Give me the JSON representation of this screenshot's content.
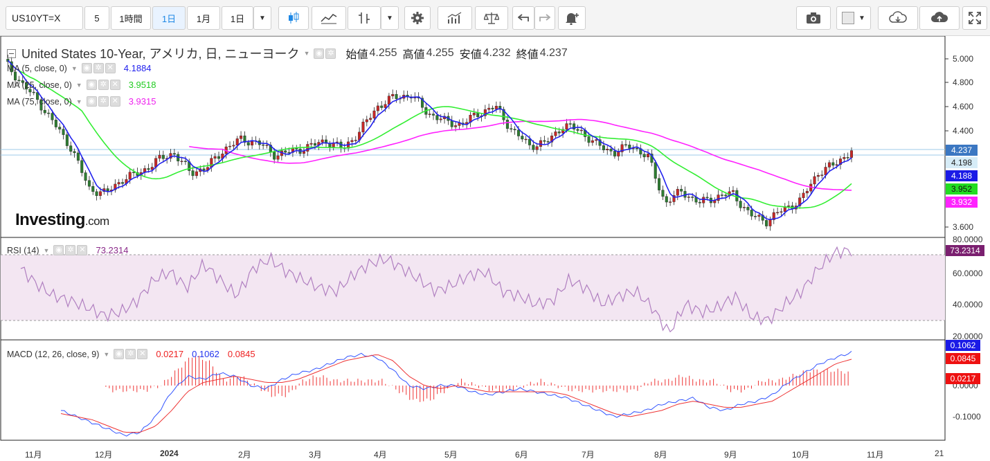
{
  "toolbar": {
    "symbol": "US10YT=X",
    "interval_5": "5",
    "interval_1h": "1時間",
    "interval_1d": "1日",
    "range_1m": "1月",
    "range_1d": "1日"
  },
  "main": {
    "title": "United States 10-Year, アメリカ, 日, ニューヨーク",
    "open_label": "始値",
    "open": "4.255",
    "high_label": "高値",
    "high": "4.255",
    "low_label": "安値",
    "low": "4.232",
    "close_label": "終値",
    "close": "4.237",
    "ma1_label": "MA (5, close, 0)",
    "ma1_value": "4.1884",
    "ma2_label": "MA (25, close, 0)",
    "ma2_value": "3.9518",
    "ma3_label": "MA (75, close, 0)",
    "ma3_value": "3.9315",
    "logo_main": "Investing",
    "logo_suffix": ".com"
  },
  "rsi": {
    "label": "RSI (14)",
    "value": "73.2314"
  },
  "macd": {
    "label": "MACD (12, 26, close, 9)",
    "hist": "0.0217",
    "macd": "0.1062",
    "signal": "0.0845"
  },
  "price_axis": [
    "5.000",
    "4.800",
    "4.600",
    "4.400",
    "3.600"
  ],
  "price_tags": {
    "close": "4.237",
    "line": "4.198",
    "ma5": "4.188",
    "ma25": "3.952",
    "ma75": "3.932"
  },
  "rsi_axis": [
    "80.0000",
    "60.0000",
    "40.0000",
    "20.0000"
  ],
  "rsi_tag": "73.2314",
  "macd_axis": [
    "0.0000",
    "-0.1000"
  ],
  "macd_tags": {
    "macd": "0.1062",
    "signal": "0.0845",
    "hist": "0.0217"
  },
  "dates": [
    "11月",
    "12月",
    "2024",
    "2月",
    "3月",
    "4月",
    "5月",
    "6月",
    "7月",
    "8月",
    "9月",
    "10月",
    "11月",
    "21"
  ],
  "colors": {
    "ma5": "#2222ee",
    "ma25": "#33ee33",
    "ma75": "#ff22ff",
    "up": "#2e7d32",
    "down": "#c62828",
    "rsi": "#b07fc0",
    "macd": "#3355ff",
    "signal": "#ee3333"
  },
  "chart_data": {
    "type": "candlestick",
    "price_ylim": [
      3.55,
      5.05
    ],
    "x": [
      "Oct",
      "Nov",
      "Dec",
      "Jan",
      "Feb",
      "Mar",
      "Apr",
      "May",
      "Jun",
      "Jul",
      "Aug",
      "Sep",
      "Oct",
      "Nov"
    ],
    "close_path": [
      4.98,
      4.8,
      4.65,
      4.45,
      4.25,
      3.92,
      3.88,
      4.0,
      4.05,
      4.15,
      4.22,
      4.05,
      4.1,
      4.25,
      4.33,
      4.3,
      4.2,
      4.23,
      4.27,
      4.32,
      4.25,
      4.4,
      4.6,
      4.68,
      4.7,
      4.55,
      4.48,
      4.45,
      4.55,
      4.6,
      4.4,
      4.28,
      4.3,
      4.45,
      4.4,
      4.28,
      4.22,
      4.28,
      4.18,
      3.8,
      3.9,
      3.8,
      3.85,
      3.88,
      3.7,
      3.65,
      3.75,
      3.82,
      4.05,
      4.12,
      4.237
    ],
    "rsi_ylim": [
      20,
      80
    ],
    "rsi": [
      62,
      52,
      45,
      42,
      38,
      33,
      35,
      42,
      55,
      60,
      50,
      65,
      55,
      45,
      62,
      68,
      60,
      55,
      50,
      48,
      58,
      65,
      68,
      62,
      55,
      48,
      52,
      58,
      60,
      48,
      45,
      40,
      42,
      55,
      50,
      40,
      45,
      48,
      38,
      22,
      40,
      35,
      38,
      45,
      32,
      30,
      40,
      48,
      62,
      72,
      73.2
    ],
    "macd_ylim": [
      -0.17,
      0.12
    ],
    "macd": [
      -0.08,
      -0.1,
      -0.12,
      -0.14,
      -0.16,
      -0.15,
      -0.1,
      -0.02,
      0.03,
      0.02,
      0.04,
      0.03,
      0.0,
      -0.01,
      0.02,
      0.04,
      0.05,
      0.07,
      0.09,
      0.1,
      0.09,
      0.05,
      0.0,
      -0.01,
      0.0,
      0.0,
      -0.02,
      -0.03,
      -0.02,
      -0.01,
      -0.02,
      -0.03,
      -0.04,
      -0.06,
      -0.08,
      -0.1,
      -0.09,
      -0.08,
      -0.06,
      -0.05,
      -0.04,
      -0.07,
      -0.08,
      -0.06,
      -0.05,
      -0.03,
      0.01,
      0.04,
      0.07,
      0.09,
      0.1062
    ],
    "signal": [
      -0.09,
      -0.1,
      -0.11,
      -0.13,
      -0.15,
      -0.15,
      -0.13,
      -0.08,
      -0.02,
      0.01,
      0.02,
      0.03,
      0.02,
      0.01,
      0.01,
      0.02,
      0.04,
      0.06,
      0.08,
      0.09,
      0.1,
      0.08,
      0.03,
      0.0,
      -0.01,
      0.0,
      -0.01,
      -0.02,
      -0.02,
      -0.02,
      -0.02,
      -0.02,
      -0.03,
      -0.05,
      -0.07,
      -0.09,
      -0.1,
      -0.09,
      -0.08,
      -0.06,
      -0.05,
      -0.06,
      -0.07,
      -0.07,
      -0.06,
      -0.05,
      -0.02,
      0.01,
      0.04,
      0.07,
      0.0845
    ]
  }
}
